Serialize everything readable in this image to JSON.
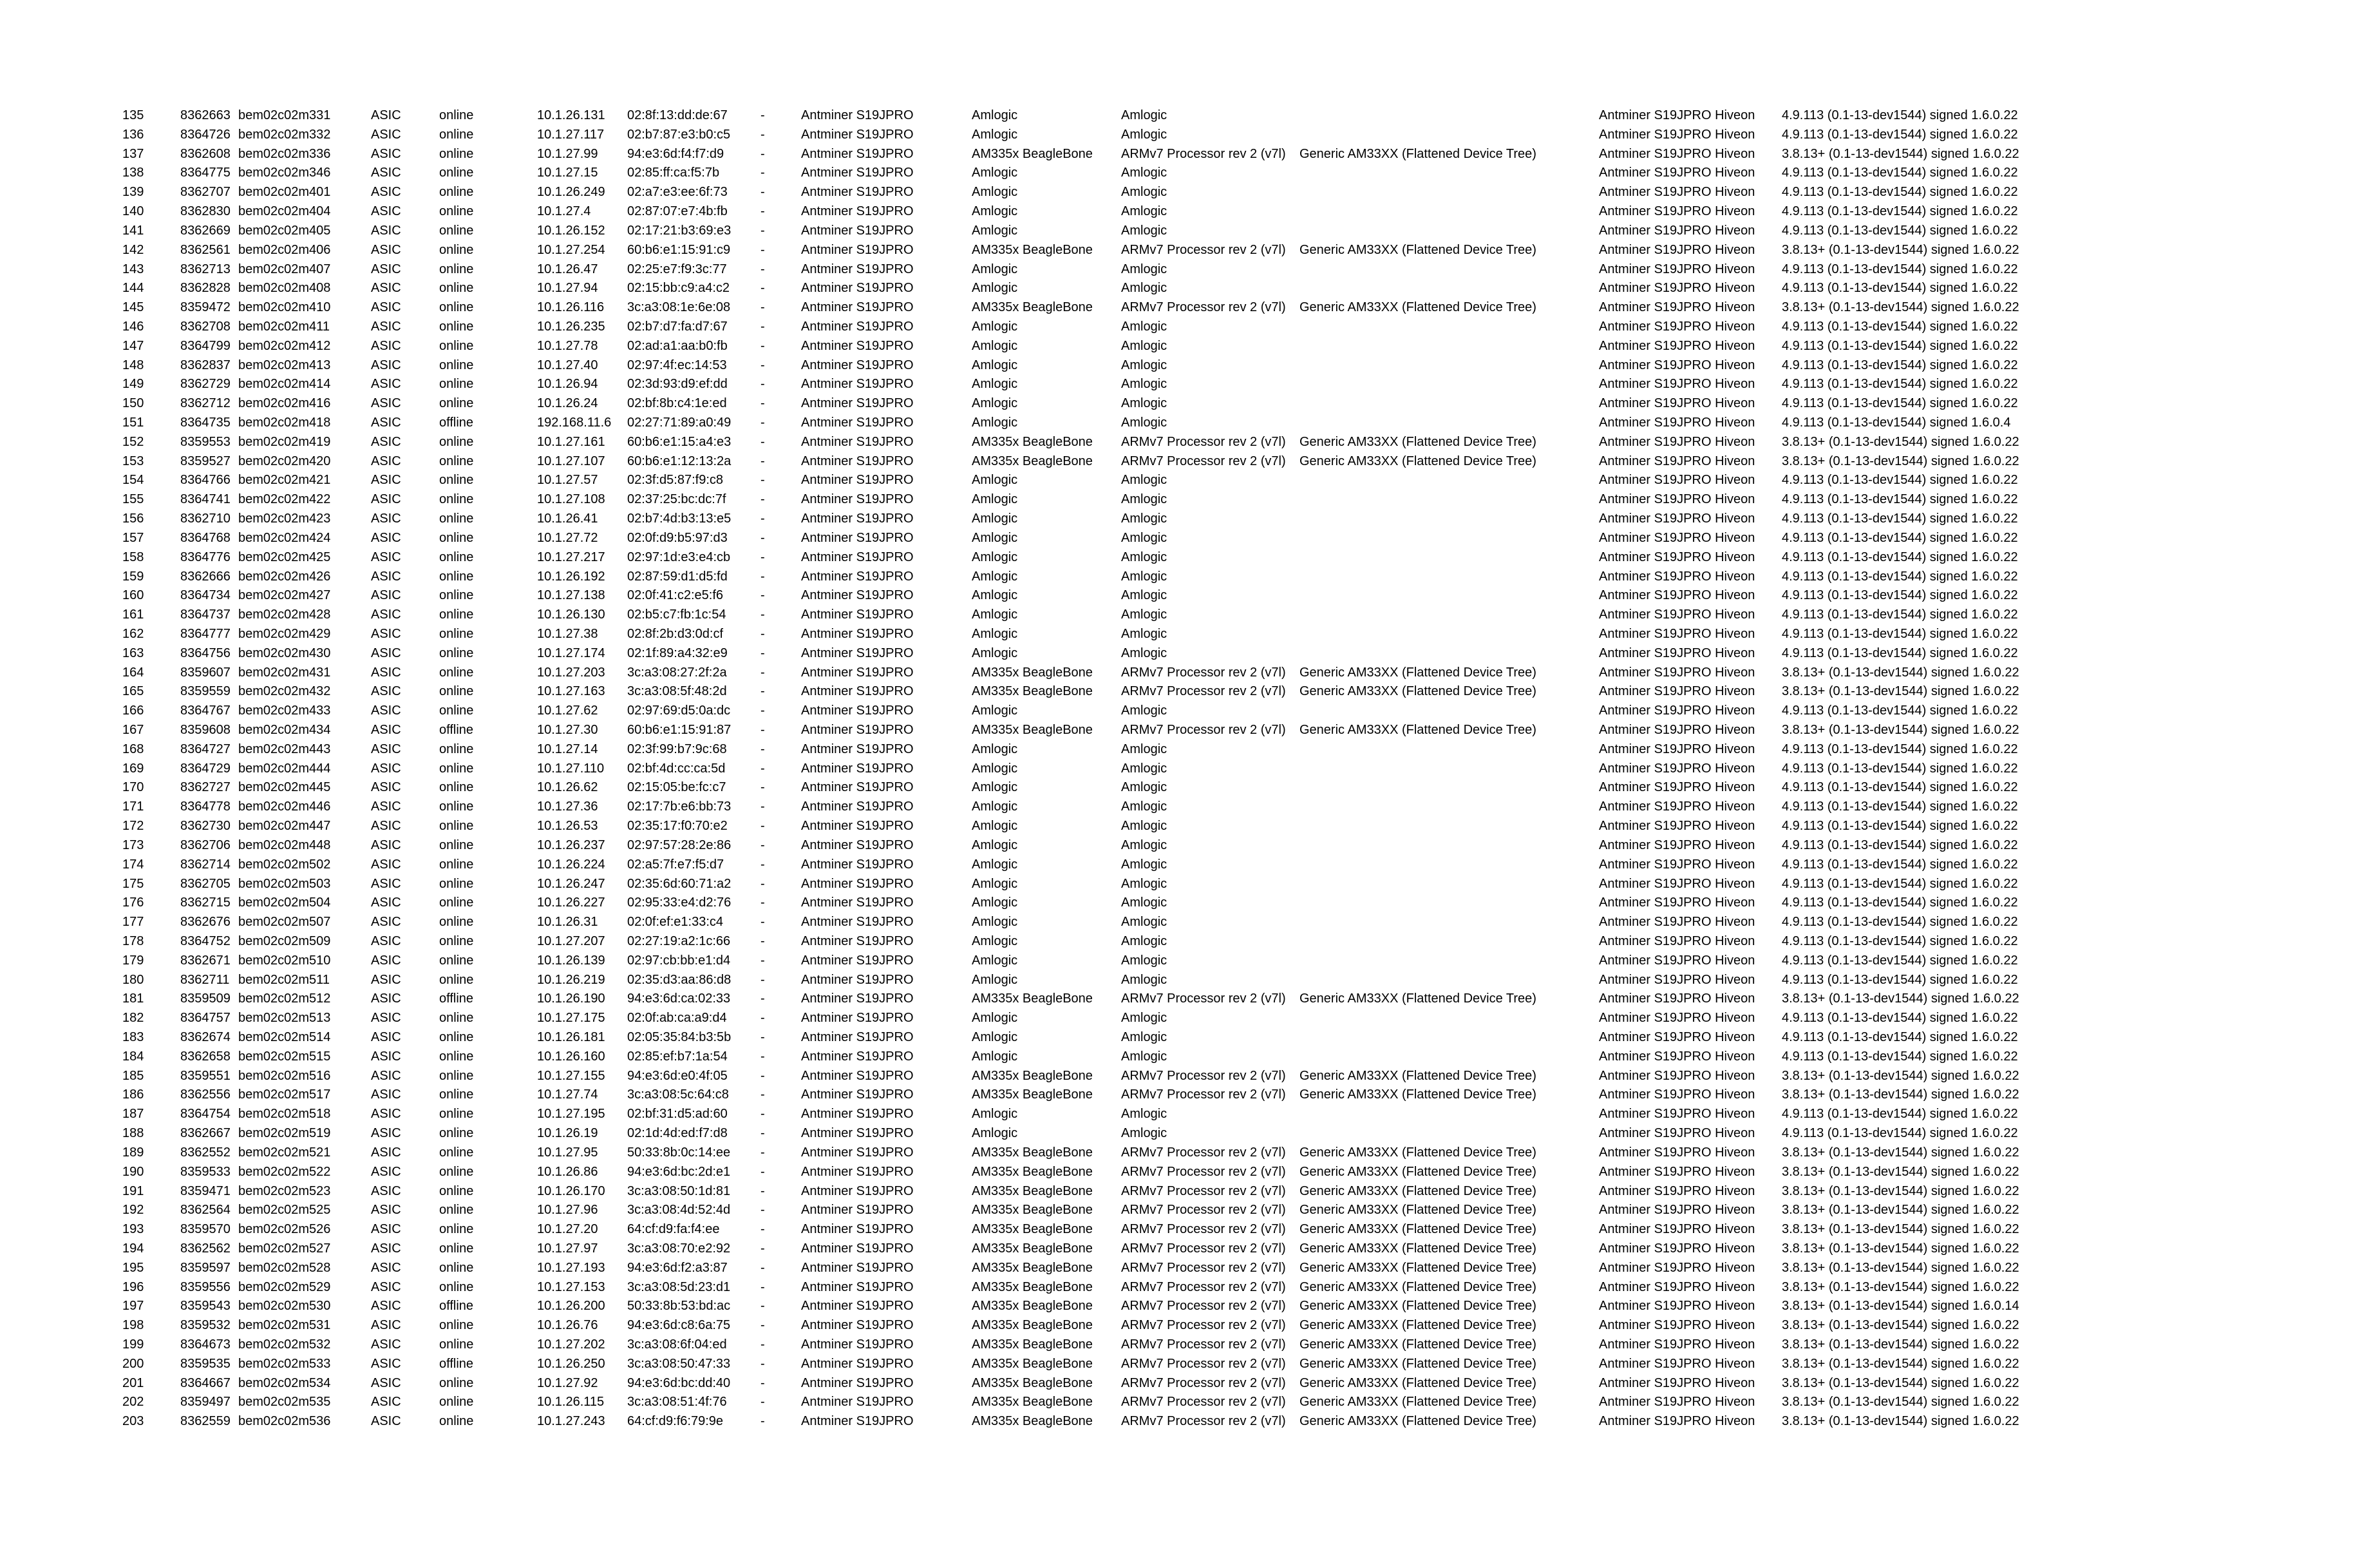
{
  "table": {
    "constants": {
      "type": "ASIC",
      "separator": "-",
      "model": "Antminer S19JPRO",
      "firmware": "Antminer S19JPRO Hiveon"
    },
    "status_values": {
      "online": "online",
      "offline": "offline"
    },
    "platforms": {
      "amlogic": {
        "platform": "Amlogic",
        "cpu": "Amlogic",
        "board": ""
      },
      "am335x": {
        "platform": "AM335x BeagleBone",
        "cpu": "ARMv7 Processor rev 2 (v7l)",
        "board": "Generic AM33XX (Flattened Device Tree)"
      }
    },
    "kernels": {
      "k49": "4.9.113 (0.1-13-dev1544) signed 1.6.0.22",
      "k38": "3.8.13+ (0.1-13-dev1544) signed 1.6.0.22",
      "k49_4": "4.9.113 (0.1-13-dev1544) signed 1.6.0.4",
      "k38_14": "3.8.13+ (0.1-13-dev1544) signed 1.6.0.14"
    },
    "columns": [
      "row-number",
      "worker-id",
      "hostname",
      "type",
      "status",
      "ip-address",
      "mac-address",
      "separator",
      "model",
      "platform",
      "processor",
      "board",
      "firmware",
      "kernel"
    ],
    "rows": [
      [
        "135",
        "8362663",
        "bem02c02m331",
        "online",
        "10.1.26.131",
        "02:8f:13:dd:de:67",
        "amlogic",
        "k49"
      ],
      [
        "136",
        "8364726",
        "bem02c02m332",
        "online",
        "10.1.27.117",
        "02:b7:87:e3:b0:c5",
        "amlogic",
        "k49"
      ],
      [
        "137",
        "8362608",
        "bem02c02m336",
        "online",
        "10.1.27.99",
        "94:e3:6d:f4:f7:d9",
        "am335x",
        "k38"
      ],
      [
        "138",
        "8364775",
        "bem02c02m346",
        "online",
        "10.1.27.15",
        "02:85:ff:ca:f5:7b",
        "amlogic",
        "k49"
      ],
      [
        "139",
        "8362707",
        "bem02c02m401",
        "online",
        "10.1.26.249",
        "02:a7:e3:ee:6f:73",
        "amlogic",
        "k49"
      ],
      [
        "140",
        "8362830",
        "bem02c02m404",
        "online",
        "10.1.27.4",
        "02:87:07:e7:4b:fb",
        "amlogic",
        "k49"
      ],
      [
        "141",
        "8362669",
        "bem02c02m405",
        "online",
        "10.1.26.152",
        "02:17:21:b3:69:e3",
        "amlogic",
        "k49"
      ],
      [
        "142",
        "8362561",
        "bem02c02m406",
        "online",
        "10.1.27.254",
        "60:b6:e1:15:91:c9",
        "am335x",
        "k38"
      ],
      [
        "143",
        "8362713",
        "bem02c02m407",
        "online",
        "10.1.26.47",
        "02:25:e7:f9:3c:77",
        "amlogic",
        "k49"
      ],
      [
        "144",
        "8362828",
        "bem02c02m408",
        "online",
        "10.1.27.94",
        "02:15:bb:c9:a4:c2",
        "amlogic",
        "k49"
      ],
      [
        "145",
        "8359472",
        "bem02c02m410",
        "online",
        "10.1.26.116",
        "3c:a3:08:1e:6e:08",
        "am335x",
        "k38"
      ],
      [
        "146",
        "8362708",
        "bem02c02m411",
        "online",
        "10.1.26.235",
        "02:b7:d7:fa:d7:67",
        "amlogic",
        "k49"
      ],
      [
        "147",
        "8364799",
        "bem02c02m412",
        "online",
        "10.1.27.78",
        "02:ad:a1:aa:b0:fb",
        "amlogic",
        "k49"
      ],
      [
        "148",
        "8362837",
        "bem02c02m413",
        "online",
        "10.1.27.40",
        "02:97:4f:ec:14:53",
        "amlogic",
        "k49"
      ],
      [
        "149",
        "8362729",
        "bem02c02m414",
        "online",
        "10.1.26.94",
        "02:3d:93:d9:ef:dd",
        "amlogic",
        "k49"
      ],
      [
        "150",
        "8362712",
        "bem02c02m416",
        "online",
        "10.1.26.24",
        "02:bf:8b:c4:1e:ed",
        "amlogic",
        "k49"
      ],
      [
        "151",
        "8364735",
        "bem02c02m418",
        "offline",
        "192.168.11.6",
        "02:27:71:89:a0:49",
        "amlogic",
        "k49_4"
      ],
      [
        "152",
        "8359553",
        "bem02c02m419",
        "online",
        "10.1.27.161",
        "60:b6:e1:15:a4:e3",
        "am335x",
        "k38"
      ],
      [
        "153",
        "8359527",
        "bem02c02m420",
        "online",
        "10.1.27.107",
        "60:b6:e1:12:13:2a",
        "am335x",
        "k38"
      ],
      [
        "154",
        "8364766",
        "bem02c02m421",
        "online",
        "10.1.27.57",
        "02:3f:d5:87:f9:c8",
        "amlogic",
        "k49"
      ],
      [
        "155",
        "8364741",
        "bem02c02m422",
        "online",
        "10.1.27.108",
        "02:37:25:bc:dc:7f",
        "amlogic",
        "k49"
      ],
      [
        "156",
        "8362710",
        "bem02c02m423",
        "online",
        "10.1.26.41",
        "02:b7:4d:b3:13:e5",
        "amlogic",
        "k49"
      ],
      [
        "157",
        "8364768",
        "bem02c02m424",
        "online",
        "10.1.27.72",
        "02:0f:d9:b5:97:d3",
        "amlogic",
        "k49"
      ],
      [
        "158",
        "8364776",
        "bem02c02m425",
        "online",
        "10.1.27.217",
        "02:97:1d:e3:e4:cb",
        "amlogic",
        "k49"
      ],
      [
        "159",
        "8362666",
        "bem02c02m426",
        "online",
        "10.1.26.192",
        "02:87:59:d1:d5:fd",
        "amlogic",
        "k49"
      ],
      [
        "160",
        "8364734",
        "bem02c02m427",
        "online",
        "10.1.27.138",
        "02:0f:41:c2:e5:f6",
        "amlogic",
        "k49"
      ],
      [
        "161",
        "8364737",
        "bem02c02m428",
        "online",
        "10.1.26.130",
        "02:b5:c7:fb:1c:54",
        "amlogic",
        "k49"
      ],
      [
        "162",
        "8364777",
        "bem02c02m429",
        "online",
        "10.1.27.38",
        "02:8f:2b:d3:0d:cf",
        "amlogic",
        "k49"
      ],
      [
        "163",
        "8364756",
        "bem02c02m430",
        "online",
        "10.1.27.174",
        "02:1f:89:a4:32:e9",
        "amlogic",
        "k49"
      ],
      [
        "164",
        "8359607",
        "bem02c02m431",
        "online",
        "10.1.27.203",
        "3c:a3:08:27:2f:2a",
        "am335x",
        "k38"
      ],
      [
        "165",
        "8359559",
        "bem02c02m432",
        "online",
        "10.1.27.163",
        "3c:a3:08:5f:48:2d",
        "am335x",
        "k38"
      ],
      [
        "166",
        "8364767",
        "bem02c02m433",
        "online",
        "10.1.27.62",
        "02:97:69:d5:0a:dc",
        "amlogic",
        "k49"
      ],
      [
        "167",
        "8359608",
        "bem02c02m434",
        "offline",
        "10.1.27.30",
        "60:b6:e1:15:91:87",
        "am335x",
        "k38"
      ],
      [
        "168",
        "8364727",
        "bem02c02m443",
        "online",
        "10.1.27.14",
        "02:3f:99:b7:9c:68",
        "amlogic",
        "k49"
      ],
      [
        "169",
        "8364729",
        "bem02c02m444",
        "online",
        "10.1.27.110",
        "02:bf:4d:cc:ca:5d",
        "amlogic",
        "k49"
      ],
      [
        "170",
        "8362727",
        "bem02c02m445",
        "online",
        "10.1.26.62",
        "02:15:05:be:fc:c7",
        "amlogic",
        "k49"
      ],
      [
        "171",
        "8364778",
        "bem02c02m446",
        "online",
        "10.1.27.36",
        "02:17:7b:e6:bb:73",
        "amlogic",
        "k49"
      ],
      [
        "172",
        "8362730",
        "bem02c02m447",
        "online",
        "10.1.26.53",
        "02:35:17:f0:70:e2",
        "amlogic",
        "k49"
      ],
      [
        "173",
        "8362706",
        "bem02c02m448",
        "online",
        "10.1.26.237",
        "02:97:57:28:2e:86",
        "amlogic",
        "k49"
      ],
      [
        "174",
        "8362714",
        "bem02c02m502",
        "online",
        "10.1.26.224",
        "02:a5:7f:e7:f5:d7",
        "amlogic",
        "k49"
      ],
      [
        "175",
        "8362705",
        "bem02c02m503",
        "online",
        "10.1.26.247",
        "02:35:6d:60:71:a2",
        "amlogic",
        "k49"
      ],
      [
        "176",
        "8362715",
        "bem02c02m504",
        "online",
        "10.1.26.227",
        "02:95:33:e4:d2:76",
        "amlogic",
        "k49"
      ],
      [
        "177",
        "8362676",
        "bem02c02m507",
        "online",
        "10.1.26.31",
        "02:0f:ef:e1:33:c4",
        "amlogic",
        "k49"
      ],
      [
        "178",
        "8364752",
        "bem02c02m509",
        "online",
        "10.1.27.207",
        "02:27:19:a2:1c:66",
        "amlogic",
        "k49"
      ],
      [
        "179",
        "8362671",
        "bem02c02m510",
        "online",
        "10.1.26.139",
        "02:97:cb:bb:e1:d4",
        "amlogic",
        "k49"
      ],
      [
        "180",
        "8362711",
        "bem02c02m511",
        "online",
        "10.1.26.219",
        "02:35:d3:aa:86:d8",
        "amlogic",
        "k49"
      ],
      [
        "181",
        "8359509",
        "bem02c02m512",
        "offline",
        "10.1.26.190",
        "94:e3:6d:ca:02:33",
        "am335x",
        "k38"
      ],
      [
        "182",
        "8364757",
        "bem02c02m513",
        "online",
        "10.1.27.175",
        "02:0f:ab:ca:a9:d4",
        "amlogic",
        "k49"
      ],
      [
        "183",
        "8362674",
        "bem02c02m514",
        "online",
        "10.1.26.181",
        "02:05:35:84:b3:5b",
        "amlogic",
        "k49"
      ],
      [
        "184",
        "8362658",
        "bem02c02m515",
        "online",
        "10.1.26.160",
        "02:85:ef:b7:1a:54",
        "amlogic",
        "k49"
      ],
      [
        "185",
        "8359551",
        "bem02c02m516",
        "online",
        "10.1.27.155",
        "94:e3:6d:e0:4f:05",
        "am335x",
        "k38"
      ],
      [
        "186",
        "8362556",
        "bem02c02m517",
        "online",
        "10.1.27.74",
        "3c:a3:08:5c:64:c8",
        "am335x",
        "k38"
      ],
      [
        "187",
        "8364754",
        "bem02c02m518",
        "online",
        "10.1.27.195",
        "02:bf:31:d5:ad:60",
        "amlogic",
        "k49"
      ],
      [
        "188",
        "8362667",
        "bem02c02m519",
        "online",
        "10.1.26.19",
        "02:1d:4d:ed:f7:d8",
        "amlogic",
        "k49"
      ],
      [
        "189",
        "8362552",
        "bem02c02m521",
        "online",
        "10.1.27.95",
        "50:33:8b:0c:14:ee",
        "am335x",
        "k38"
      ],
      [
        "190",
        "8359533",
        "bem02c02m522",
        "online",
        "10.1.26.86",
        "94:e3:6d:bc:2d:e1",
        "am335x",
        "k38"
      ],
      [
        "191",
        "8359471",
        "bem02c02m523",
        "online",
        "10.1.26.170",
        "3c:a3:08:50:1d:81",
        "am335x",
        "k38"
      ],
      [
        "192",
        "8362564",
        "bem02c02m525",
        "online",
        "10.1.27.96",
        "3c:a3:08:4d:52:4d",
        "am335x",
        "k38"
      ],
      [
        "193",
        "8359570",
        "bem02c02m526",
        "online",
        "10.1.27.20",
        "64:cf:d9:fa:f4:ee",
        "am335x",
        "k38"
      ],
      [
        "194",
        "8362562",
        "bem02c02m527",
        "online",
        "10.1.27.97",
        "3c:a3:08:70:e2:92",
        "am335x",
        "k38"
      ],
      [
        "195",
        "8359597",
        "bem02c02m528",
        "online",
        "10.1.27.193",
        "94:e3:6d:f2:a3:87",
        "am335x",
        "k38"
      ],
      [
        "196",
        "8359556",
        "bem02c02m529",
        "online",
        "10.1.27.153",
        "3c:a3:08:5d:23:d1",
        "am335x",
        "k38"
      ],
      [
        "197",
        "8359543",
        "bem02c02m530",
        "offline",
        "10.1.26.200",
        "50:33:8b:53:bd:ac",
        "am335x",
        "k38_14"
      ],
      [
        "198",
        "8359532",
        "bem02c02m531",
        "online",
        "10.1.26.76",
        "94:e3:6d:c8:6a:75",
        "am335x",
        "k38"
      ],
      [
        "199",
        "8364673",
        "bem02c02m532",
        "online",
        "10.1.27.202",
        "3c:a3:08:6f:04:ed",
        "am335x",
        "k38"
      ],
      [
        "200",
        "8359535",
        "bem02c02m533",
        "offline",
        "10.1.26.250",
        "3c:a3:08:50:47:33",
        "am335x",
        "k38"
      ],
      [
        "201",
        "8364667",
        "bem02c02m534",
        "online",
        "10.1.27.92",
        "94:e3:6d:bc:dd:40",
        "am335x",
        "k38"
      ],
      [
        "202",
        "8359497",
        "bem02c02m535",
        "online",
        "10.1.26.115",
        "3c:a3:08:51:4f:76",
        "am335x",
        "k38"
      ],
      [
        "203",
        "8362559",
        "bem02c02m536",
        "online",
        "10.1.27.243",
        "64:cf:d9:f6:79:9e",
        "am335x",
        "k38"
      ]
    ]
  }
}
